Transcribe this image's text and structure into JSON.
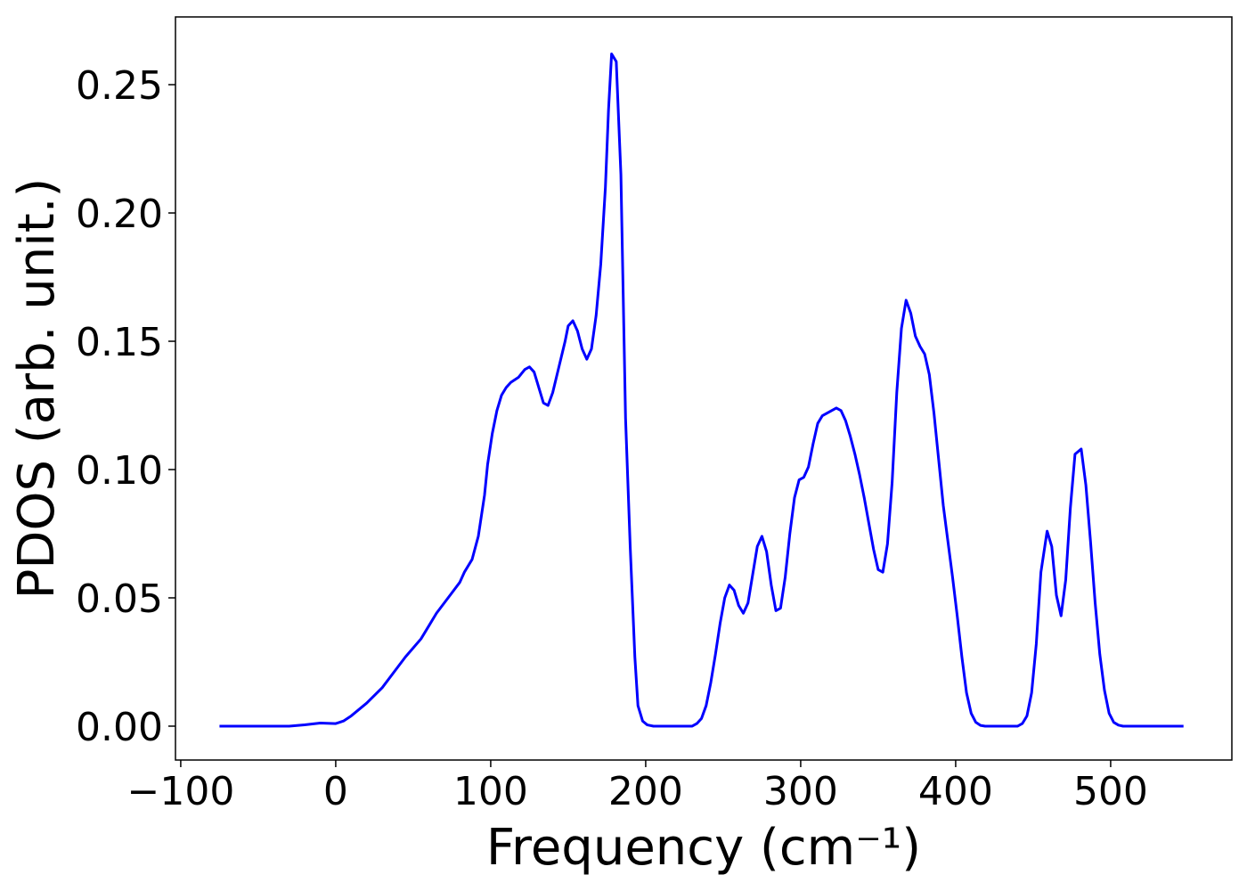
{
  "chart_data": {
    "type": "line",
    "x_label": "Frequency (cm⁻¹)",
    "y_label": "PDOS (arb. unit.)",
    "xlim": [
      -103.4,
      578.2
    ],
    "ylim": [
      -0.0132,
      0.2764
    ],
    "xticks": [
      {
        "value": -100,
        "label": "−100"
      },
      0,
      100,
      200,
      300,
      400,
      500
    ],
    "yticks": [
      {
        "value": 0,
        "label": "0.00"
      },
      0.05,
      {
        "value": 0.1,
        "label": "0.10"
      },
      0.15,
      {
        "value": 0.2,
        "label": "0.20"
      },
      0.25
    ],
    "series": [
      {
        "color": "#0000ff",
        "x": [
          -75,
          -30,
          -20,
          -10,
          0,
          5,
          10,
          20,
          30,
          40,
          45,
          55,
          60,
          65,
          70,
          75,
          80,
          83,
          88,
          92,
          96,
          98,
          101,
          104,
          107,
          110,
          113,
          118,
          122,
          125,
          128,
          131,
          134,
          137,
          140,
          144,
          148,
          150,
          153,
          156,
          159,
          162,
          165,
          168,
          171,
          174,
          176,
          178,
          181,
          184,
          187,
          190,
          193,
          195,
          198,
          201,
          205,
          230,
          233,
          236,
          239,
          242,
          245,
          248,
          251,
          254,
          257,
          260,
          263,
          266,
          269,
          272,
          275,
          278,
          281,
          284,
          287,
          290,
          293,
          296,
          299,
          302,
          305,
          308,
          311,
          314,
          317,
          320,
          323,
          326,
          329,
          332,
          335,
          338,
          341,
          344,
          347,
          350,
          353,
          356,
          359,
          362,
          365,
          368,
          371,
          374,
          377,
          380,
          383,
          386,
          389,
          392,
          395,
          398,
          401,
          404,
          407,
          410,
          413,
          416,
          419,
          440,
          443,
          446,
          449,
          452,
          455,
          459,
          462,
          465,
          468,
          471,
          474,
          477,
          481,
          484,
          487,
          490,
          493,
          496,
          499,
          502,
          505,
          508,
          547
        ],
        "values": [
          0,
          0,
          0.0005,
          0.0012,
          0.001,
          0.002,
          0.004,
          0.009,
          0.015,
          0.023,
          0.027,
          0.034,
          0.039,
          0.044,
          0.048,
          0.052,
          0.056,
          0.06,
          0.065,
          0.074,
          0.09,
          0.102,
          0.114,
          0.123,
          0.129,
          0.132,
          0.134,
          0.136,
          0.139,
          0.14,
          0.138,
          0.132,
          0.126,
          0.125,
          0.13,
          0.14,
          0.15,
          0.156,
          0.158,
          0.154,
          0.147,
          0.143,
          0.147,
          0.16,
          0.18,
          0.21,
          0.24,
          0.262,
          0.259,
          0.215,
          0.12,
          0.07,
          0.027,
          0.008,
          0.002,
          0.0005,
          0,
          0,
          0.001,
          0.003,
          0.008,
          0.017,
          0.028,
          0.04,
          0.05,
          0.055,
          0.053,
          0.047,
          0.044,
          0.048,
          0.059,
          0.07,
          0.074,
          0.068,
          0.055,
          0.045,
          0.046,
          0.058,
          0.075,
          0.089,
          0.096,
          0.097,
          0.101,
          0.11,
          0.118,
          0.121,
          0.122,
          0.123,
          0.124,
          0.123,
          0.119,
          0.113,
          0.106,
          0.098,
          0.089,
          0.079,
          0.069,
          0.061,
          0.06,
          0.071,
          0.095,
          0.13,
          0.155,
          0.166,
          0.161,
          0.152,
          0.148,
          0.145,
          0.137,
          0.122,
          0.104,
          0.086,
          0.072,
          0.058,
          0.043,
          0.027,
          0.013,
          0.005,
          0.0015,
          0.0003,
          0,
          0,
          0.001,
          0.004,
          0.013,
          0.032,
          0.06,
          0.076,
          0.07,
          0.051,
          0.043,
          0.057,
          0.085,
          0.106,
          0.108,
          0.094,
          0.072,
          0.048,
          0.028,
          0.014,
          0.005,
          0.0015,
          0.0004,
          0,
          0
        ]
      }
    ]
  }
}
